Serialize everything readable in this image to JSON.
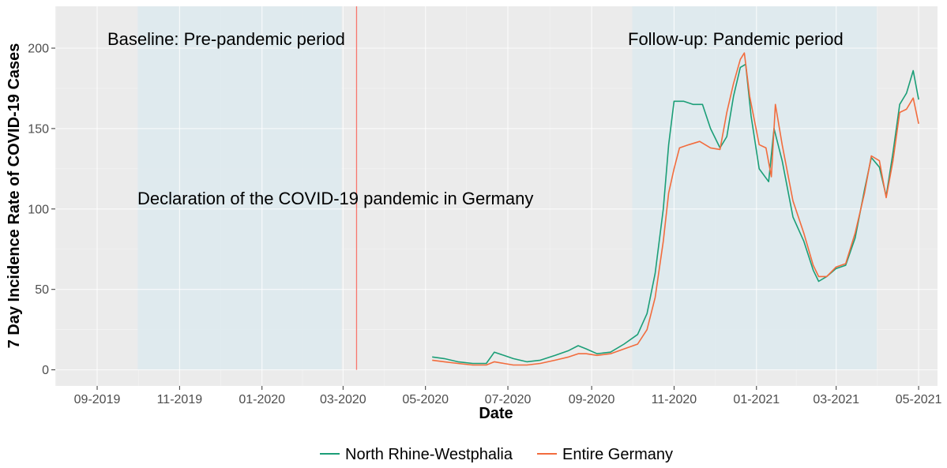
{
  "chart_data": {
    "type": "line",
    "title": "",
    "xlabel": "Date",
    "ylabel": "7 Day Incidence Rate of COVID-19 Cases",
    "x_range": [
      "2019-08-01",
      "2021-05-15"
    ],
    "ylim": [
      -10,
      226
    ],
    "x_ticks": [
      {
        "date": "2019-09-01",
        "label": "09-2019"
      },
      {
        "date": "2019-11-01",
        "label": "11-2019"
      },
      {
        "date": "2020-01-01",
        "label": "01-2020"
      },
      {
        "date": "2020-03-01",
        "label": "03-2020"
      },
      {
        "date": "2020-05-01",
        "label": "05-2020"
      },
      {
        "date": "2020-07-01",
        "label": "07-2020"
      },
      {
        "date": "2020-09-01",
        "label": "09-2020"
      },
      {
        "date": "2020-11-01",
        "label": "11-2020"
      },
      {
        "date": "2021-01-01",
        "label": "01-2021"
      },
      {
        "date": "2021-03-01",
        "label": "03-2021"
      },
      {
        "date": "2021-05-01",
        "label": "05-2021"
      }
    ],
    "y_ticks": [
      {
        "value": 0,
        "label": "0"
      },
      {
        "value": 50,
        "label": "50"
      },
      {
        "value": 100,
        "label": "100"
      },
      {
        "value": 150,
        "label": "150"
      },
      {
        "value": 200,
        "label": "200"
      }
    ],
    "grid": true,
    "legend_position": "bottom",
    "shaded_periods": [
      {
        "start": "2019-10-01",
        "end": "2020-02-29",
        "label": "Baseline: Pre-pandemic period"
      },
      {
        "start": "2020-10-01",
        "end": "2021-03-31",
        "label": "Follow-up: Pandemic period"
      }
    ],
    "event_line": {
      "date": "2020-03-11",
      "label": "Declaration of the COVID-19 pandemic in Germany"
    },
    "series": [
      {
        "name": "North Rhine-Westphalia",
        "color": "#1b9e77",
        "points": [
          [
            "2020-05-06",
            8
          ],
          [
            "2020-05-15",
            7
          ],
          [
            "2020-05-25",
            5
          ],
          [
            "2020-06-05",
            4
          ],
          [
            "2020-06-15",
            4
          ],
          [
            "2020-06-21",
            11
          ],
          [
            "2020-06-28",
            9
          ],
          [
            "2020-07-05",
            7
          ],
          [
            "2020-07-15",
            5
          ],
          [
            "2020-07-25",
            6
          ],
          [
            "2020-08-05",
            9
          ],
          [
            "2020-08-15",
            12
          ],
          [
            "2020-08-22",
            15
          ],
          [
            "2020-08-28",
            13
          ],
          [
            "2020-09-05",
            10
          ],
          [
            "2020-09-15",
            11
          ],
          [
            "2020-09-25",
            16
          ],
          [
            "2020-10-05",
            22
          ],
          [
            "2020-10-12",
            35
          ],
          [
            "2020-10-18",
            60
          ],
          [
            "2020-10-24",
            100
          ],
          [
            "2020-10-28",
            140
          ],
          [
            "2020-11-01",
            167
          ],
          [
            "2020-11-08",
            167
          ],
          [
            "2020-11-15",
            165
          ],
          [
            "2020-11-22",
            165
          ],
          [
            "2020-11-28",
            150
          ],
          [
            "2020-12-05",
            138
          ],
          [
            "2020-12-10",
            145
          ],
          [
            "2020-12-15",
            170
          ],
          [
            "2020-12-20",
            188
          ],
          [
            "2020-12-24",
            190
          ],
          [
            "2020-12-28",
            158
          ],
          [
            "2021-01-03",
            125
          ],
          [
            "2021-01-10",
            117
          ],
          [
            "2021-01-14",
            150
          ],
          [
            "2021-01-20",
            130
          ],
          [
            "2021-01-28",
            95
          ],
          [
            "2021-02-05",
            80
          ],
          [
            "2021-02-12",
            62
          ],
          [
            "2021-02-16",
            55
          ],
          [
            "2021-02-22",
            58
          ],
          [
            "2021-03-01",
            63
          ],
          [
            "2021-03-08",
            65
          ],
          [
            "2021-03-15",
            82
          ],
          [
            "2021-03-22",
            112
          ],
          [
            "2021-03-27",
            132
          ],
          [
            "2021-04-02",
            126
          ],
          [
            "2021-04-07",
            108
          ],
          [
            "2021-04-12",
            135
          ],
          [
            "2021-04-17",
            165
          ],
          [
            "2021-04-22",
            172
          ],
          [
            "2021-04-27",
            186
          ],
          [
            "2021-05-01",
            168
          ]
        ]
      },
      {
        "name": "Entire Germany",
        "color": "#f26c3d",
        "points": [
          [
            "2020-05-06",
            6
          ],
          [
            "2020-05-15",
            5
          ],
          [
            "2020-05-25",
            4
          ],
          [
            "2020-06-05",
            3
          ],
          [
            "2020-06-15",
            3
          ],
          [
            "2020-06-21",
            5
          ],
          [
            "2020-06-28",
            4
          ],
          [
            "2020-07-05",
            3
          ],
          [
            "2020-07-15",
            3
          ],
          [
            "2020-07-25",
            4
          ],
          [
            "2020-08-05",
            6
          ],
          [
            "2020-08-15",
            8
          ],
          [
            "2020-08-22",
            10
          ],
          [
            "2020-08-28",
            10
          ],
          [
            "2020-09-05",
            9
          ],
          [
            "2020-09-15",
            10
          ],
          [
            "2020-09-25",
            13
          ],
          [
            "2020-10-05",
            16
          ],
          [
            "2020-10-12",
            25
          ],
          [
            "2020-10-18",
            45
          ],
          [
            "2020-10-24",
            80
          ],
          [
            "2020-10-28",
            110
          ],
          [
            "2020-11-01",
            125
          ],
          [
            "2020-11-05",
            138
          ],
          [
            "2020-11-12",
            140
          ],
          [
            "2020-11-20",
            142
          ],
          [
            "2020-11-28",
            138
          ],
          [
            "2020-12-05",
            137
          ],
          [
            "2020-12-10",
            160
          ],
          [
            "2020-12-15",
            178
          ],
          [
            "2020-12-20",
            193
          ],
          [
            "2020-12-23",
            197
          ],
          [
            "2020-12-27",
            170
          ],
          [
            "2021-01-03",
            140
          ],
          [
            "2021-01-08",
            138
          ],
          [
            "2021-01-12",
            120
          ],
          [
            "2021-01-15",
            165
          ],
          [
            "2021-01-20",
            140
          ],
          [
            "2021-01-28",
            105
          ],
          [
            "2021-02-05",
            85
          ],
          [
            "2021-02-12",
            65
          ],
          [
            "2021-02-16",
            58
          ],
          [
            "2021-02-22",
            58
          ],
          [
            "2021-03-01",
            64
          ],
          [
            "2021-03-08",
            66
          ],
          [
            "2021-03-15",
            85
          ],
          [
            "2021-03-22",
            110
          ],
          [
            "2021-03-27",
            133
          ],
          [
            "2021-04-02",
            130
          ],
          [
            "2021-04-07",
            107
          ],
          [
            "2021-04-12",
            130
          ],
          [
            "2021-04-17",
            160
          ],
          [
            "2021-04-22",
            162
          ],
          [
            "2021-04-27",
            169
          ],
          [
            "2021-05-01",
            153
          ]
        ]
      }
    ]
  },
  "colors": {
    "panel_background": "#ebebeb",
    "shade": "#deeaee",
    "event_line": "#f8766d"
  }
}
